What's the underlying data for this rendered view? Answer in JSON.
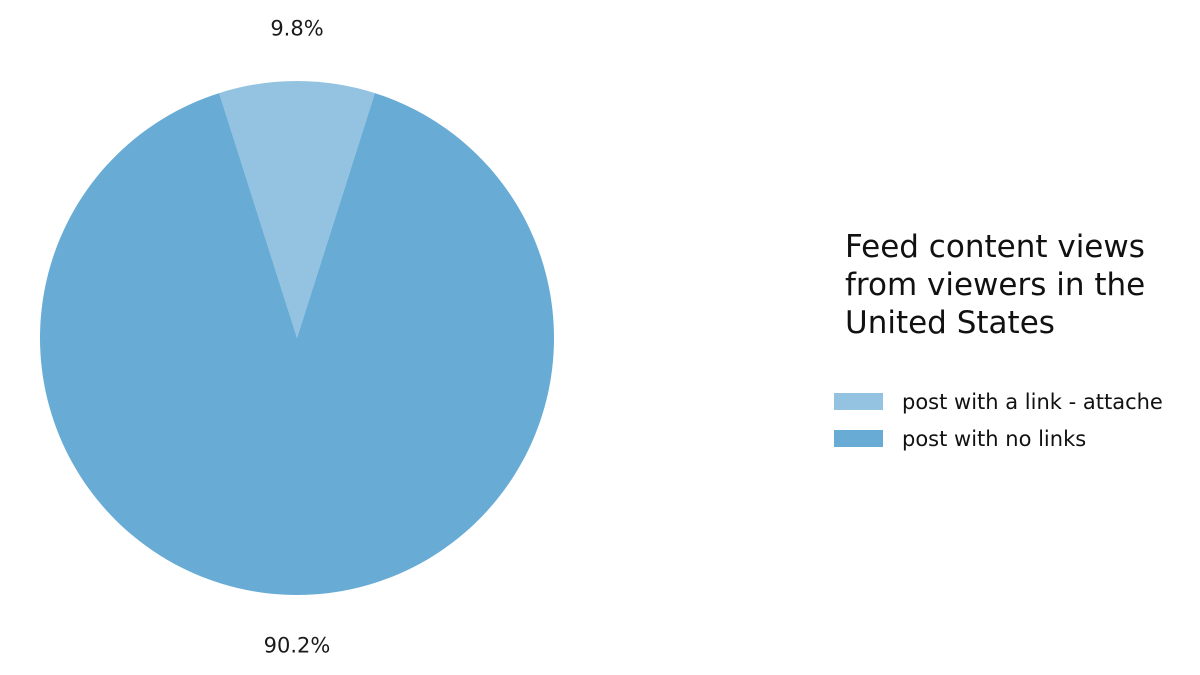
{
  "chart_data": {
    "type": "pie",
    "title": "",
    "legend": {
      "title_lines": [
        "Feed content views",
        "from viewers in the",
        "United States"
      ],
      "placement": "right"
    },
    "slices": [
      {
        "label": "post with a link - attache",
        "value": 9.8,
        "display": "9.8%",
        "color": "#93c3e1"
      },
      {
        "label": "post with no links",
        "value": 90.2,
        "display": "90.2%",
        "color": "#68acd6"
      }
    ]
  }
}
